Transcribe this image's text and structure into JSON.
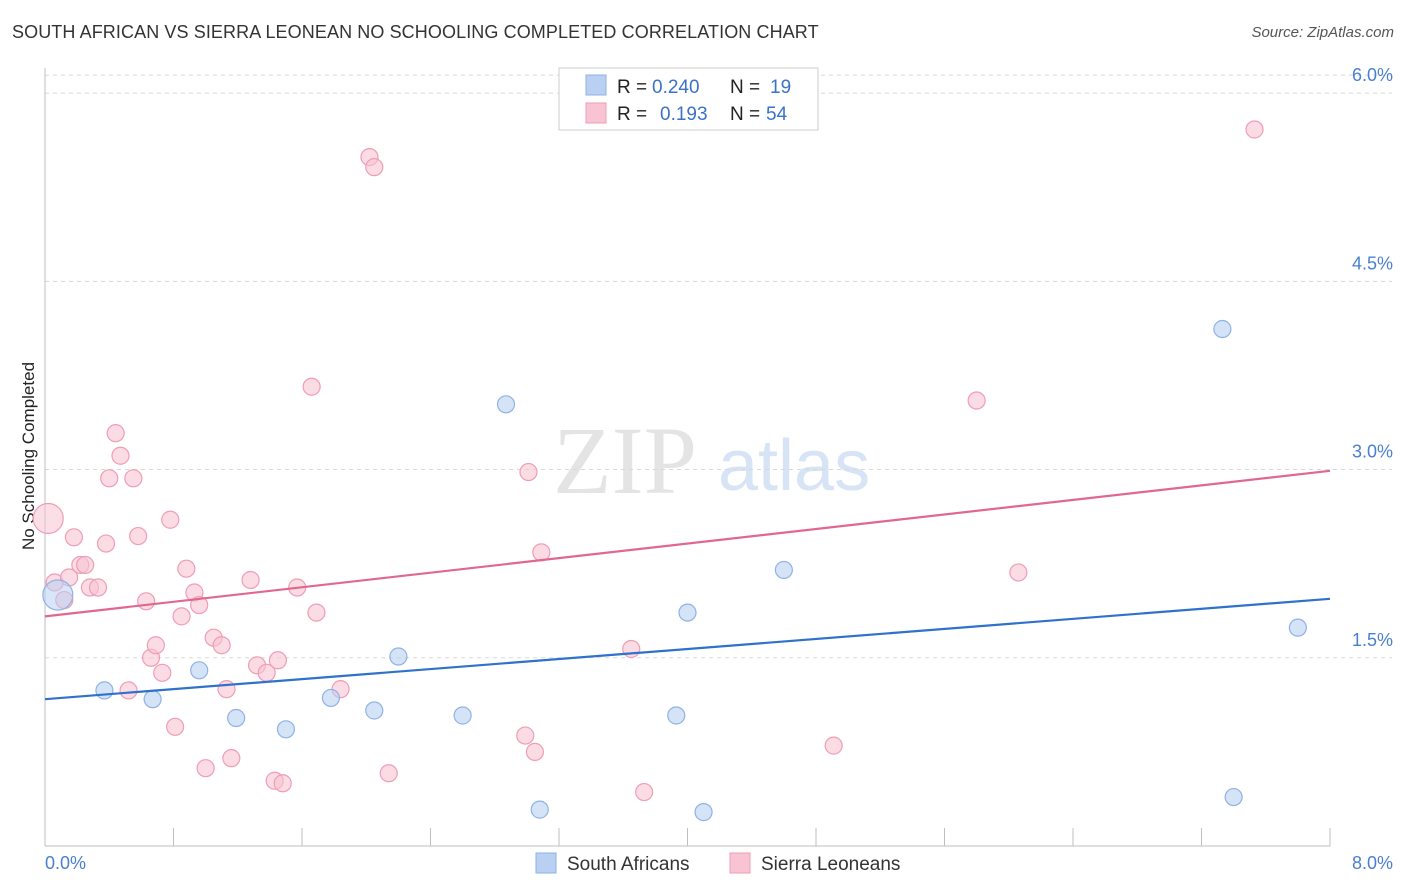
{
  "title": "SOUTH AFRICAN VS SIERRA LEONEAN NO SCHOOLING COMPLETED CORRELATION CHART",
  "source": "Source: ZipAtlas.com",
  "watermark": {
    "zip": "ZIP",
    "atlas": "atlas"
  },
  "legend": [
    {
      "r_label": "R =",
      "r_value": "0.240",
      "n_label": "N =",
      "n_value": "19"
    },
    {
      "r_label": "R =",
      "r_value": "0.193",
      "n_label": "N =",
      "n_value": "54"
    }
  ],
  "colors": {
    "blue_fill": "#b9d0f2",
    "blue_stroke": "#8fb2e6",
    "blue_line": "#2f72c9",
    "pink_fill": "#f8c3d2",
    "pink_stroke": "#ef9db6",
    "pink_line": "#e06890",
    "tick_text": "#4a7fd0",
    "grid": "#d8d8d8"
  },
  "chart_data": {
    "type": "scatter",
    "title": "SOUTH AFRICAN VS SIERRA LEONEAN NO SCHOOLING COMPLETED CORRELATION CHART",
    "xlabel": "",
    "ylabel": "No Schooling Completed",
    "xlim": [
      0,
      8
    ],
    "ylim": [
      0,
      6.2
    ],
    "x_tick_labels": [
      "0.0%",
      "8.0%"
    ],
    "y_ticks": [
      1.5,
      3.0,
      4.5,
      6.0
    ],
    "y_tick_labels": [
      "1.5%",
      "3.0%",
      "4.5%",
      "6.0%"
    ],
    "grid": true,
    "series": [
      {
        "name": "South Africans",
        "color": "#b9d0f2",
        "r": 0.24,
        "n": 19,
        "trend": {
          "x": [
            0,
            8
          ],
          "y": [
            1.17,
            1.97
          ]
        },
        "points": [
          [
            0.08,
            2.0,
            "large"
          ],
          [
            0.37,
            1.24
          ],
          [
            0.67,
            1.17
          ],
          [
            0.96,
            1.4
          ],
          [
            1.19,
            1.02
          ],
          [
            1.5,
            0.93
          ],
          [
            1.78,
            1.18
          ],
          [
            2.05,
            1.08
          ],
          [
            2.2,
            1.51
          ],
          [
            2.6,
            1.04
          ],
          [
            2.87,
            3.52
          ],
          [
            3.08,
            0.29
          ],
          [
            3.93,
            1.04
          ],
          [
            4.0,
            1.86
          ],
          [
            4.1,
            0.27
          ],
          [
            4.6,
            2.2
          ],
          [
            7.33,
            4.12
          ],
          [
            7.4,
            0.39
          ],
          [
            7.8,
            1.74
          ]
        ]
      },
      {
        "name": "Sierra Leoneans",
        "color": "#f8c3d2",
        "r": 0.193,
        "n": 54,
        "trend": {
          "x": [
            0,
            8
          ],
          "y": [
            1.83,
            2.99
          ]
        },
        "points": [
          [
            0.02,
            2.61,
            "large"
          ],
          [
            0.06,
            2.1
          ],
          [
            0.12,
            1.96
          ],
          [
            0.15,
            2.14
          ],
          [
            0.18,
            2.46
          ],
          [
            0.22,
            2.24
          ],
          [
            0.25,
            2.24
          ],
          [
            0.28,
            2.06
          ],
          [
            0.33,
            2.06
          ],
          [
            0.38,
            2.41
          ],
          [
            0.4,
            2.93
          ],
          [
            0.44,
            3.29
          ],
          [
            0.47,
            3.11
          ],
          [
            0.52,
            1.24
          ],
          [
            0.55,
            2.93
          ],
          [
            0.58,
            2.47
          ],
          [
            0.63,
            1.95
          ],
          [
            0.66,
            1.5
          ],
          [
            0.69,
            1.6
          ],
          [
            0.73,
            1.38
          ],
          [
            0.78,
            2.6
          ],
          [
            0.81,
            0.95
          ],
          [
            0.85,
            1.83
          ],
          [
            0.88,
            2.21
          ],
          [
            0.93,
            2.02
          ],
          [
            0.96,
            1.92
          ],
          [
            1.0,
            0.62
          ],
          [
            1.05,
            1.66
          ],
          [
            1.1,
            1.6
          ],
          [
            1.13,
            1.25
          ],
          [
            1.16,
            0.7
          ],
          [
            1.28,
            2.12
          ],
          [
            1.32,
            1.44
          ],
          [
            1.38,
            1.38
          ],
          [
            1.43,
            0.52
          ],
          [
            1.45,
            1.48
          ],
          [
            1.48,
            0.5
          ],
          [
            1.57,
            2.06
          ],
          [
            1.66,
            3.66
          ],
          [
            1.69,
            1.86
          ],
          [
            1.84,
            1.25
          ],
          [
            2.02,
            5.49
          ],
          [
            2.05,
            5.41
          ],
          [
            2.14,
            0.58
          ],
          [
            2.99,
            0.88
          ],
          [
            3.01,
            2.98
          ],
          [
            3.05,
            0.75
          ],
          [
            3.09,
            2.34
          ],
          [
            3.65,
            1.57
          ],
          [
            3.73,
            0.43
          ],
          [
            4.91,
            0.8
          ],
          [
            5.8,
            3.55
          ],
          [
            6.06,
            2.18
          ],
          [
            7.53,
            5.71
          ]
        ]
      }
    ]
  }
}
